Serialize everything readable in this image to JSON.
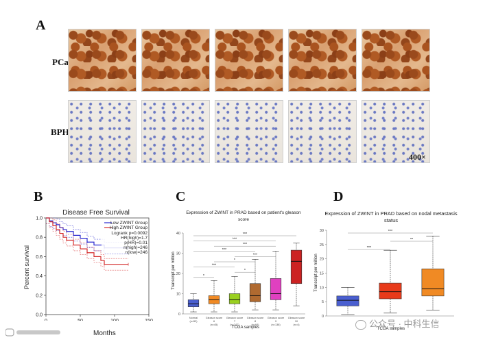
{
  "figure": {
    "panel_a": {
      "letter": "A",
      "row_labels": [
        "PCa",
        "BPH"
      ],
      "magnification": "400×"
    },
    "panel_b": {
      "letter": "B",
      "title": "Disease Free Survival",
      "ylabel": "Percent survival",
      "xlabel": "Months",
      "legend": [
        "Low ZWINT Group",
        "High ZWINT Group"
      ],
      "stats": [
        "Logrank p=0.0092",
        "HR(high)=1.7",
        "p(HR)=0.01",
        "n(high)=246",
        "n(low)=246"
      ],
      "colors": {
        "low": "#2a2ad0",
        "high": "#d42a2a"
      }
    },
    "panel_c": {
      "letter": "C",
      "title_line1": "Expression of ZWINT in PRAD based on patient's gleason",
      "title_line2": "score",
      "ylabel": "Transcript per million",
      "xlabel": "TCGA samples"
    },
    "panel_d": {
      "letter": "D",
      "title_line1": "Expression of ZWINT in PRAD based on nodal metastasis",
      "title_line2": "status",
      "ylabel": "Transcript per million",
      "xlabel": "TCGA samples"
    },
    "watermarks": [
      "公众号 · 中科生信"
    ]
  },
  "chart_data": [
    {
      "type": "line",
      "title": "Disease Free Survival",
      "xlabel": "Months",
      "ylabel": "Percent survival",
      "xlim": [
        0,
        150
      ],
      "ylim": [
        0.0,
        1.0
      ],
      "x_ticks": [
        0,
        50,
        100,
        150
      ],
      "y_ticks": [
        0.0,
        0.2,
        0.4,
        0.6,
        0.8,
        1.0
      ],
      "series": [
        {
          "name": "Low ZWINT Group",
          "color": "#2a2ad0",
          "x": [
            0,
            5,
            10,
            15,
            20,
            25,
            30,
            40,
            50,
            60,
            70,
            80,
            85,
            90,
            100,
            120
          ],
          "y": [
            1.0,
            0.97,
            0.95,
            0.93,
            0.9,
            0.88,
            0.86,
            0.82,
            0.79,
            0.75,
            0.72,
            0.72,
            0.69,
            0.69,
            0.69,
            0.69
          ]
        },
        {
          "name": "High ZWINT Group",
          "color": "#d42a2a",
          "x": [
            0,
            5,
            10,
            15,
            20,
            25,
            30,
            40,
            50,
            60,
            70,
            80,
            85,
            90,
            100,
            120
          ],
          "y": [
            1.0,
            0.96,
            0.92,
            0.88,
            0.84,
            0.8,
            0.77,
            0.72,
            0.68,
            0.64,
            0.6,
            0.56,
            0.52,
            0.52,
            0.52,
            0.52
          ]
        }
      ],
      "annotations": [
        "Logrank p=0.0092",
        "HR(high)=1.7",
        "p(HR)=0.01",
        "n(high)=246",
        "n(low)=246"
      ]
    },
    {
      "type": "box",
      "title": "Expression of ZWINT in PRAD based on patient's gleason score",
      "xlabel": "TCGA samples",
      "ylabel": "Transcript per million",
      "ylim": [
        0,
        40
      ],
      "y_ticks": [
        0,
        10,
        20,
        30,
        40
      ],
      "categories": [
        "Normal",
        "Gleason score 6",
        "Gleason score 7",
        "Gleason score 8",
        "Gleason score 9",
        "Gleason score 10"
      ],
      "category_n": [
        "(n=52)",
        "(n=45)",
        "(n=247)",
        "(n=64)",
        "(n=138)",
        "(n=4)"
      ],
      "colors": [
        "#4a5fd0",
        "#f08a24",
        "#9ad020",
        "#b06a30",
        "#e040c0",
        "#cc2222"
      ],
      "boxes": [
        {
          "whislo": 1,
          "q1": 3.5,
          "med": 5,
          "q3": 7,
          "whishi": 10
        },
        {
          "whislo": 1,
          "q1": 5,
          "med": 7,
          "q3": 9,
          "whishi": 16.5
        },
        {
          "whislo": 1,
          "q1": 5,
          "med": 7,
          "q3": 10,
          "whishi": 18.5
        },
        {
          "whislo": 2,
          "q1": 6,
          "med": 9,
          "q3": 15,
          "whishi": 27
        },
        {
          "whislo": 2,
          "q1": 7,
          "med": 10,
          "q3": 17.5,
          "whishi": 31
        },
        {
          "whislo": 4,
          "q1": 15,
          "med": 26,
          "q3": 31.5,
          "whishi": 35
        }
      ],
      "significance": [
        {
          "pair": [
            0,
            1
          ],
          "label": "*"
        },
        {
          "pair": [
            0,
            2
          ],
          "label": "***"
        },
        {
          "pair": [
            0,
            3
          ],
          "label": "***"
        },
        {
          "pair": [
            0,
            4
          ],
          "label": "***"
        },
        {
          "pair": [
            1,
            3
          ],
          "label": "*"
        },
        {
          "pair": [
            2,
            3
          ],
          "label": "*"
        },
        {
          "pair": [
            1,
            4
          ],
          "label": "***"
        },
        {
          "pair": [
            2,
            4
          ],
          "label": "***"
        },
        {
          "pair": [
            0,
            5
          ],
          "label": "***"
        }
      ]
    },
    {
      "type": "box",
      "title": "Expression of ZWINT in PRAD based on nodal metastasis status",
      "xlabel": "TCGA samples",
      "ylabel": "Transcript per million",
      "ylim": [
        0,
        30
      ],
      "y_ticks": [
        0,
        5,
        10,
        15,
        20,
        25,
        30
      ],
      "categories": [
        "",
        "",
        ""
      ],
      "colors": [
        "#4a5fd0",
        "#e83a1a",
        "#f08a24"
      ],
      "boxes": [
        {
          "whislo": 0.5,
          "q1": 3.5,
          "med": 5.5,
          "q3": 7,
          "whishi": 10
        },
        {
          "whislo": 1,
          "q1": 6,
          "med": 8.5,
          "q3": 11.5,
          "whishi": 23
        },
        {
          "whislo": 2,
          "q1": 7,
          "med": 9.5,
          "q3": 16.5,
          "whishi": 28
        }
      ],
      "significance": [
        {
          "pair": [
            0,
            1
          ],
          "label": "***"
        },
        {
          "pair": [
            1,
            2
          ],
          "label": "**"
        },
        {
          "pair": [
            0,
            2
          ],
          "label": "***"
        }
      ]
    }
  ]
}
